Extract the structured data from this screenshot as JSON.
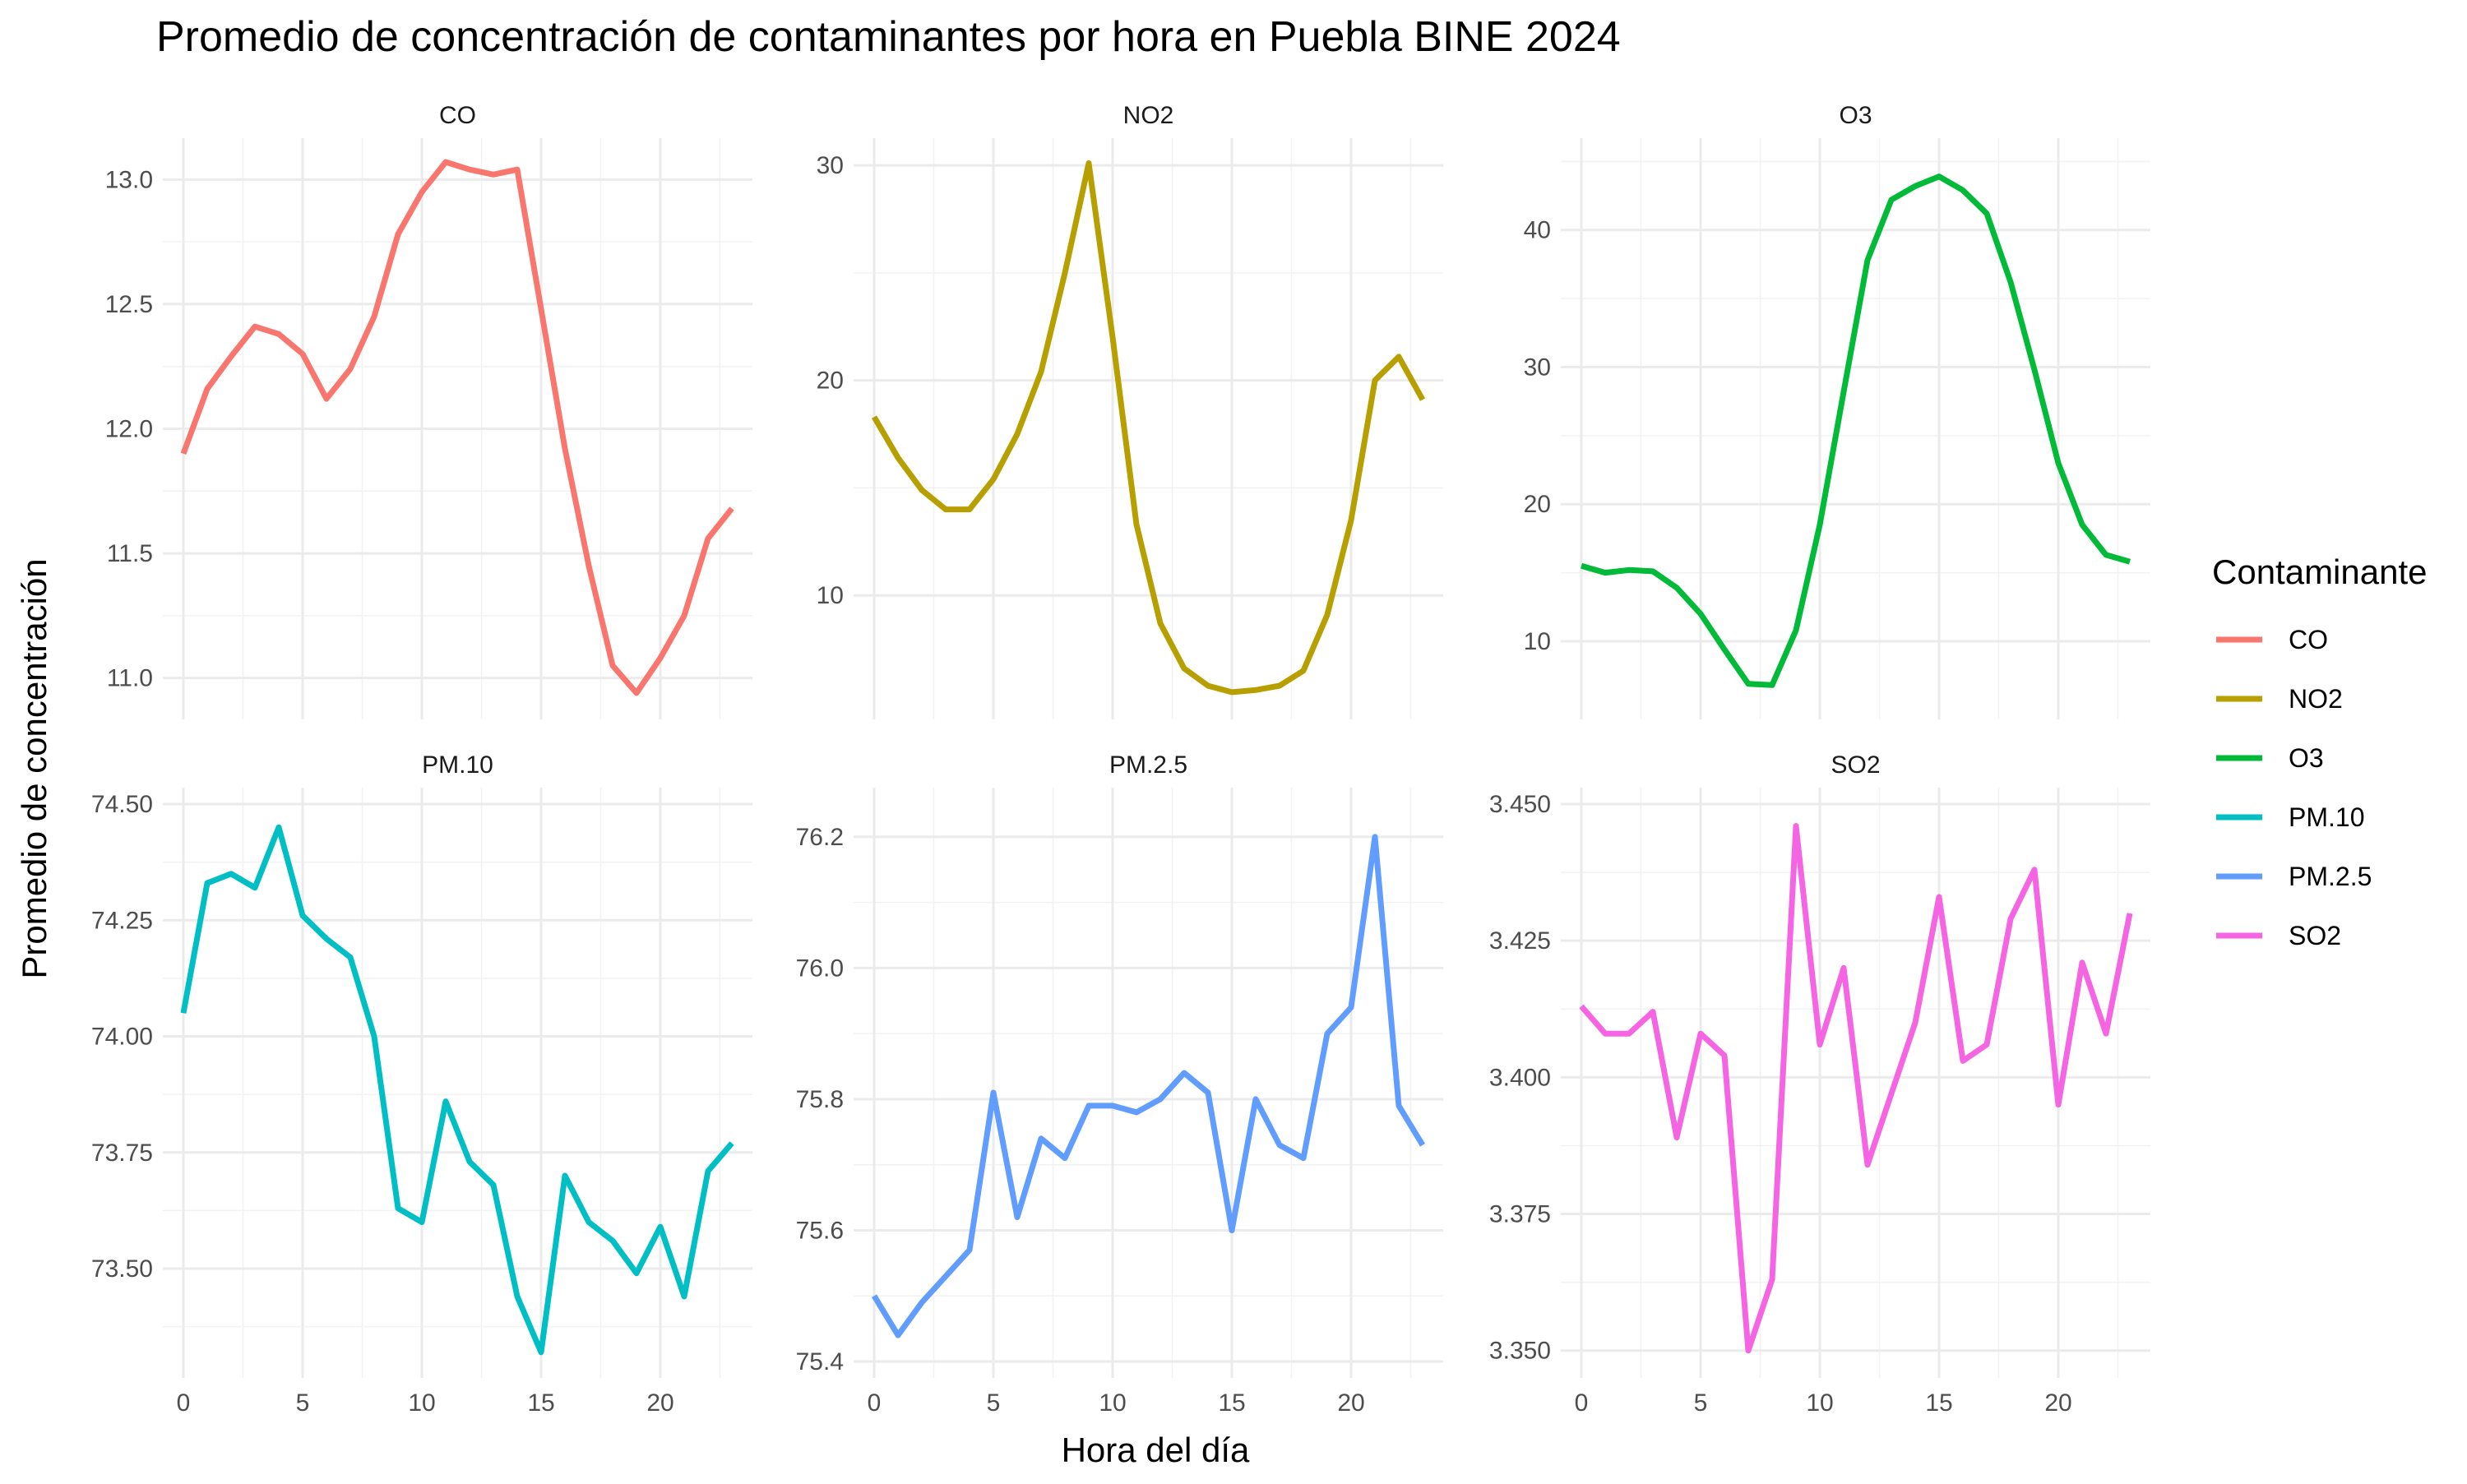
{
  "chart_data": {
    "type": "line",
    "title": "Promedio de concentración de contaminantes por hora en Puebla BINE 2024",
    "xlabel": "Hora del día",
    "ylabel": "Promedio de concentración",
    "legend": {
      "title": "Contaminante",
      "placement": "right",
      "entries": [
        "CO",
        "NO2",
        "O3",
        "PM.10",
        "PM.2.5",
        "SO2"
      ]
    },
    "facet_layout": "2 rows x 3 columns, free y scales",
    "x": [
      0,
      1,
      2,
      3,
      4,
      5,
      6,
      7,
      8,
      9,
      10,
      11,
      12,
      13,
      14,
      15,
      16,
      17,
      18,
      19,
      20,
      21,
      22,
      23
    ],
    "x_ticks": [
      "0",
      "5",
      "10",
      "15",
      "20"
    ],
    "xlim": [
      0,
      23
    ],
    "grid": true,
    "panels": [
      {
        "name": "CO",
        "color": "#F8766D",
        "ylim": [
          10.9,
          13.1
        ],
        "y_ticks": [
          "11.0",
          "11.5",
          "12.0",
          "12.5",
          "13.0"
        ],
        "y_tick_values": [
          11.0,
          11.5,
          12.0,
          12.5,
          13.0
        ],
        "values": [
          11.9,
          12.16,
          12.29,
          12.41,
          12.38,
          12.3,
          12.12,
          12.24,
          12.45,
          12.78,
          12.95,
          13.07,
          13.04,
          13.02,
          13.04,
          12.48,
          11.92,
          11.45,
          11.05,
          10.94,
          11.08,
          11.25,
          11.56,
          11.68
        ]
      },
      {
        "name": "NO2",
        "color": "#B79F00",
        "ylim": [
          5.0,
          30.5
        ],
        "y_ticks": [
          "10",
          "20",
          "30"
        ],
        "y_tick_values": [
          10,
          20,
          30
        ],
        "values": [
          18.3,
          16.4,
          14.9,
          14.0,
          14.0,
          15.4,
          17.5,
          20.4,
          25.0,
          30.1,
          22.0,
          13.3,
          8.7,
          6.6,
          5.8,
          5.5,
          5.6,
          5.8,
          6.5,
          9.1,
          13.5,
          20.0,
          21.1,
          19.1
        ]
      },
      {
        "name": "O3",
        "color": "#00BA38",
        "ylim": [
          5.5,
          45.5
        ],
        "y_ticks": [
          "10",
          "20",
          "30",
          "40"
        ],
        "y_tick_values": [
          10,
          20,
          30,
          40
        ],
        "values": [
          15.5,
          15.0,
          15.2,
          15.1,
          13.9,
          12.0,
          9.4,
          6.9,
          6.8,
          10.8,
          18.5,
          28.2,
          37.8,
          42.2,
          43.2,
          43.9,
          42.9,
          41.2,
          36.2,
          29.8,
          23.0,
          18.5,
          16.3,
          15.8
        ]
      },
      {
        "name": "PM.10",
        "color": "#00BFC4",
        "ylim": [
          73.3,
          74.5
        ],
        "y_ticks": [
          "73.50",
          "73.75",
          "74.00",
          "74.25",
          "74.50"
        ],
        "y_tick_values": [
          73.5,
          73.75,
          74.0,
          74.25,
          74.5
        ],
        "values": [
          74.05,
          74.33,
          74.35,
          74.32,
          74.45,
          74.26,
          74.21,
          74.17,
          74.0,
          73.63,
          73.6,
          73.86,
          73.73,
          73.68,
          73.44,
          73.32,
          73.7,
          73.6,
          73.56,
          73.49,
          73.59,
          73.44,
          73.71,
          73.77
        ]
      },
      {
        "name": "PM.2.5",
        "color": "#619CFF",
        "ylim": [
          75.4,
          76.25
        ],
        "y_ticks": [
          "75.4",
          "75.6",
          "75.8",
          "76.0",
          "76.2"
        ],
        "y_tick_values": [
          75.4,
          75.6,
          75.8,
          76.0,
          76.2
        ],
        "values": [
          75.5,
          75.44,
          75.49,
          75.53,
          75.57,
          75.81,
          75.62,
          75.74,
          75.71,
          75.79,
          75.79,
          75.78,
          75.8,
          75.84,
          75.81,
          75.6,
          75.8,
          75.73,
          75.71,
          75.9,
          75.94,
          76.2,
          75.79,
          75.73
        ]
      },
      {
        "name": "SO2",
        "color": "#F564E3",
        "ylim": [
          3.348,
          3.45
        ],
        "y_ticks": [
          "3.350",
          "3.375",
          "3.400",
          "3.425",
          "3.450"
        ],
        "y_tick_values": [
          3.35,
          3.375,
          3.4,
          3.425,
          3.45
        ],
        "values": [
          3.413,
          3.408,
          3.408,
          3.412,
          3.389,
          3.408,
          3.404,
          3.35,
          3.363,
          3.446,
          3.406,
          3.42,
          3.384,
          3.397,
          3.41,
          3.433,
          3.403,
          3.406,
          3.429,
          3.438,
          3.395,
          3.421,
          3.408,
          3.43
        ]
      }
    ]
  }
}
